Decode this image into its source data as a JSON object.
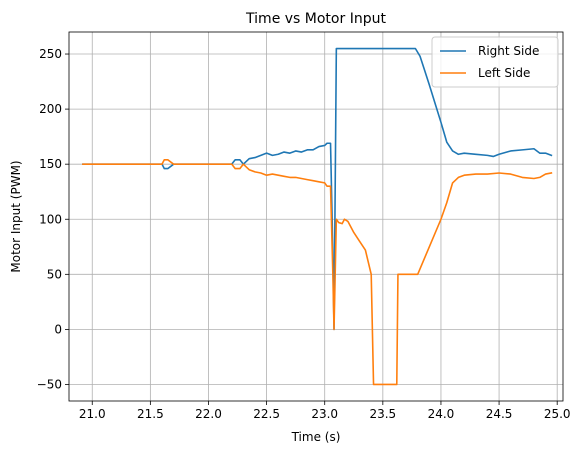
{
  "chart_data": {
    "type": "line",
    "title": "Time vs Motor Input",
    "xlabel": "Time (s)",
    "ylabel": "Motor Input (PWM)",
    "xlim": [
      20.8,
      25.05
    ],
    "ylim": [
      -65,
      270
    ],
    "xticks": [
      21.0,
      21.5,
      22.0,
      22.5,
      23.0,
      23.5,
      24.0,
      24.5,
      25.0
    ],
    "xtick_labels": [
      "21.0",
      "21.5",
      "22.0",
      "22.5",
      "23.0",
      "23.5",
      "24.0",
      "24.5",
      "25.0"
    ],
    "yticks": [
      -50,
      0,
      50,
      100,
      150,
      200,
      250
    ],
    "ytick_labels": [
      "−50",
      "0",
      "50",
      "100",
      "150",
      "200",
      "250"
    ],
    "grid": true,
    "legend": "top-right",
    "series": [
      {
        "name": "Right Side",
        "color": "#1f77b4",
        "x": [
          20.92,
          21.6,
          21.62,
          21.65,
          21.7,
          22.2,
          22.23,
          22.27,
          22.3,
          22.35,
          22.4,
          22.45,
          22.5,
          22.55,
          22.6,
          22.65,
          22.7,
          22.75,
          22.8,
          22.85,
          22.9,
          22.95,
          23.0,
          23.02,
          23.05,
          23.07,
          23.08,
          23.1,
          23.3,
          23.5,
          23.7,
          23.78,
          23.82,
          23.86,
          23.9,
          23.95,
          24.0,
          24.05,
          24.1,
          24.15,
          24.2,
          24.3,
          24.4,
          24.45,
          24.5,
          24.6,
          24.7,
          24.8,
          24.85,
          24.9,
          24.95
        ],
        "y": [
          150,
          150,
          146,
          146,
          150,
          150,
          154,
          154,
          150,
          155,
          156,
          158,
          160,
          158,
          159,
          161,
          160,
          162,
          161,
          163,
          163,
          166,
          167,
          169,
          169,
          70,
          0,
          255,
          255,
          255,
          255,
          255,
          248,
          235,
          222,
          205,
          188,
          170,
          162,
          159,
          160,
          159,
          158,
          157,
          159,
          162,
          163,
          164,
          160,
          160,
          158
        ]
      },
      {
        "name": "Left Side",
        "color": "#ff7f0e",
        "x": [
          20.92,
          21.6,
          21.62,
          21.65,
          21.7,
          22.2,
          22.23,
          22.27,
          22.3,
          22.35,
          22.4,
          22.45,
          22.5,
          22.55,
          22.6,
          22.65,
          22.7,
          22.75,
          22.8,
          22.85,
          22.9,
          22.95,
          23.0,
          23.02,
          23.05,
          23.07,
          23.08,
          23.1,
          23.12,
          23.15,
          23.17,
          23.2,
          23.25,
          23.3,
          23.35,
          23.4,
          23.42,
          23.5,
          23.6,
          23.62,
          23.63,
          23.7,
          23.8,
          23.9,
          24.0,
          24.05,
          24.1,
          24.15,
          24.2,
          24.3,
          24.4,
          24.5,
          24.6,
          24.7,
          24.8,
          24.85,
          24.9,
          24.95
        ],
        "y": [
          150,
          150,
          154,
          154,
          150,
          150,
          146,
          146,
          150,
          145,
          143,
          142,
          140,
          141,
          140,
          139,
          138,
          138,
          137,
          136,
          135,
          134,
          133,
          130,
          130,
          50,
          0,
          100,
          97,
          96,
          100,
          98,
          88,
          80,
          72,
          50,
          -50,
          -50,
          -50,
          -50,
          50,
          50,
          50,
          75,
          100,
          115,
          133,
          138,
          140,
          141,
          141,
          142,
          141,
          138,
          137,
          138,
          141,
          142
        ]
      }
    ]
  }
}
